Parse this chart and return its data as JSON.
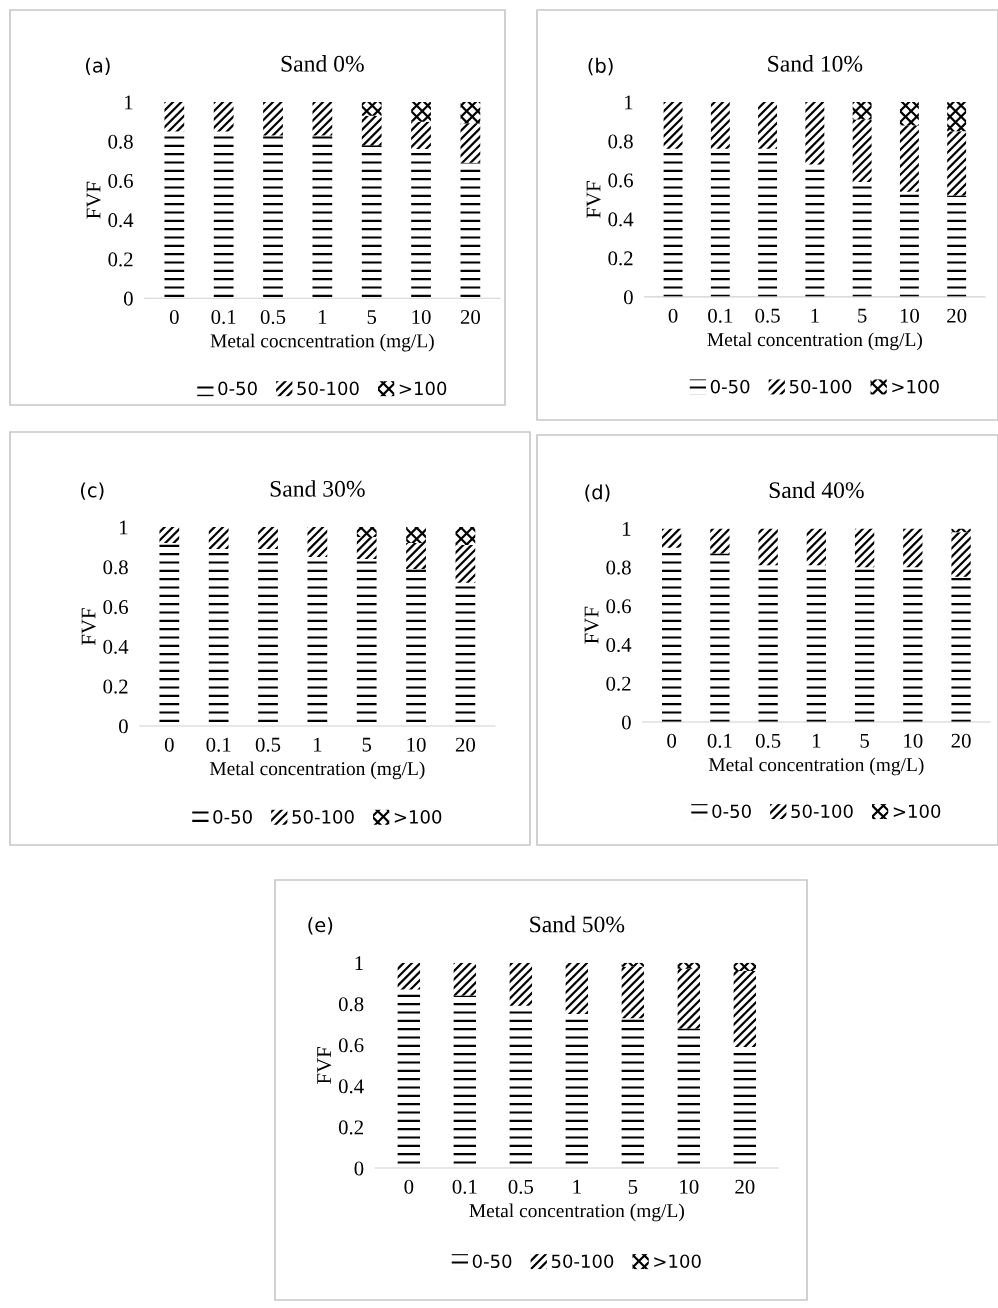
{
  "chart_data": [
    {
      "type": "bar",
      "stacked": true,
      "title": "Sand 0%",
      "xlabel": "Metal cocncentration (mg/L)",
      "ylabel": "FVF",
      "annotations": [
        "(a)"
      ],
      "categories": [
        "0",
        "0.1",
        "0.5",
        "1",
        "5",
        "10",
        "20"
      ],
      "ylim": [
        0,
        1
      ],
      "yticks": [
        0,
        0.2,
        0.4,
        0.6,
        0.8,
        1
      ],
      "grid": false,
      "legend": "bottom",
      "series": [
        {
          "name": "0-50",
          "color": "#000000",
          "values": [
            0.85,
            0.85,
            0.83,
            0.83,
            0.78,
            0.76,
            0.69
          ]
        },
        {
          "name": "50-100",
          "color": "#000000",
          "values": [
            0.15,
            0.15,
            0.17,
            0.17,
            0.15,
            0.14,
            0.2
          ]
        },
        {
          "name": ">100",
          "color": "#000000",
          "values": [
            0,
            0,
            0,
            0,
            0.07,
            0.1,
            0.11
          ]
        }
      ]
    },
    {
      "type": "bar",
      "stacked": true,
      "title": "Sand 10%",
      "xlabel": "Metal concentration (mg/L)",
      "ylabel": "FVF",
      "annotations": [
        "(b)"
      ],
      "categories": [
        "0",
        "0.1",
        "0.5",
        "1",
        "5",
        "10",
        "20"
      ],
      "ylim": [
        0,
        1
      ],
      "yticks": [
        0,
        0.2,
        0.4,
        0.6,
        0.8,
        1
      ],
      "grid": false,
      "legend": "bottom",
      "series": [
        {
          "name": "0-50",
          "color": "#000000",
          "values": [
            0.76,
            0.76,
            0.76,
            0.68,
            0.59,
            0.54,
            0.52
          ]
        },
        {
          "name": "50-100",
          "color": "#000000",
          "values": [
            0.24,
            0.24,
            0.24,
            0.32,
            0.32,
            0.34,
            0.33
          ]
        },
        {
          "name": ">100",
          "color": "#000000",
          "values": [
            0,
            0,
            0,
            0,
            0.09,
            0.12,
            0.15
          ]
        }
      ]
    },
    {
      "type": "bar",
      "stacked": true,
      "title": "Sand 30%",
      "xlabel": "Metal concentration (mg/L)",
      "ylabel": "FVF",
      "annotations": [
        "(c)"
      ],
      "categories": [
        "0",
        "0.1",
        "0.5",
        "1",
        "5",
        "10",
        "20"
      ],
      "ylim": [
        0,
        1
      ],
      "yticks": [
        0,
        0.2,
        0.4,
        0.6,
        0.8,
        1
      ],
      "grid": false,
      "legend": "bottom",
      "series": [
        {
          "name": "0-50",
          "color": "#000000",
          "values": [
            0.92,
            0.89,
            0.89,
            0.85,
            0.84,
            0.79,
            0.72
          ]
        },
        {
          "name": "50-100",
          "color": "#000000",
          "values": [
            0.08,
            0.11,
            0.11,
            0.15,
            0.11,
            0.13,
            0.19
          ]
        },
        {
          "name": ">100",
          "color": "#000000",
          "values": [
            0,
            0,
            0,
            0,
            0.05,
            0.08,
            0.09
          ]
        }
      ]
    },
    {
      "type": "bar",
      "stacked": true,
      "title": "Sand 40%",
      "xlabel": "Metal concentration (mg/L)",
      "ylabel": "FVF",
      "annotations": [
        "(d)"
      ],
      "categories": [
        "0",
        "0.1",
        "0.5",
        "1",
        "5",
        "10",
        "20"
      ],
      "ylim": [
        0,
        1
      ],
      "yticks": [
        0,
        0.2,
        0.4,
        0.6,
        0.8,
        1
      ],
      "grid": false,
      "legend": "bottom",
      "series": [
        {
          "name": "0-50",
          "color": "#000000",
          "values": [
            0.9,
            0.87,
            0.81,
            0.81,
            0.8,
            0.8,
            0.75
          ]
        },
        {
          "name": "50-100",
          "color": "#000000",
          "values": [
            0.1,
            0.13,
            0.19,
            0.19,
            0.2,
            0.2,
            0.23
          ]
        },
        {
          "name": ">100",
          "color": "#000000",
          "values": [
            0,
            0,
            0,
            0,
            0,
            0,
            0.02
          ]
        }
      ]
    },
    {
      "type": "bar",
      "stacked": true,
      "title": "Sand 50%",
      "xlabel": "Metal concentration (mg/L)",
      "ylabel": "FVF",
      "annotations": [
        "(e)"
      ],
      "categories": [
        "0",
        "0.1",
        "0.5",
        "1",
        "5",
        "10",
        "20"
      ],
      "ylim": [
        0,
        1
      ],
      "yticks": [
        0,
        0.2,
        0.4,
        0.6,
        0.8,
        1
      ],
      "grid": false,
      "legend": "bottom",
      "series": [
        {
          "name": "0-50",
          "color": "#000000",
          "values": [
            0.87,
            0.84,
            0.79,
            0.75,
            0.73,
            0.68,
            0.59
          ]
        },
        {
          "name": "50-100",
          "color": "#000000",
          "values": [
            0.13,
            0.16,
            0.21,
            0.25,
            0.25,
            0.29,
            0.37
          ]
        },
        {
          "name": ">100",
          "color": "#000000",
          "values": [
            0,
            0,
            0,
            0,
            0.02,
            0.03,
            0.04
          ]
        }
      ]
    }
  ]
}
